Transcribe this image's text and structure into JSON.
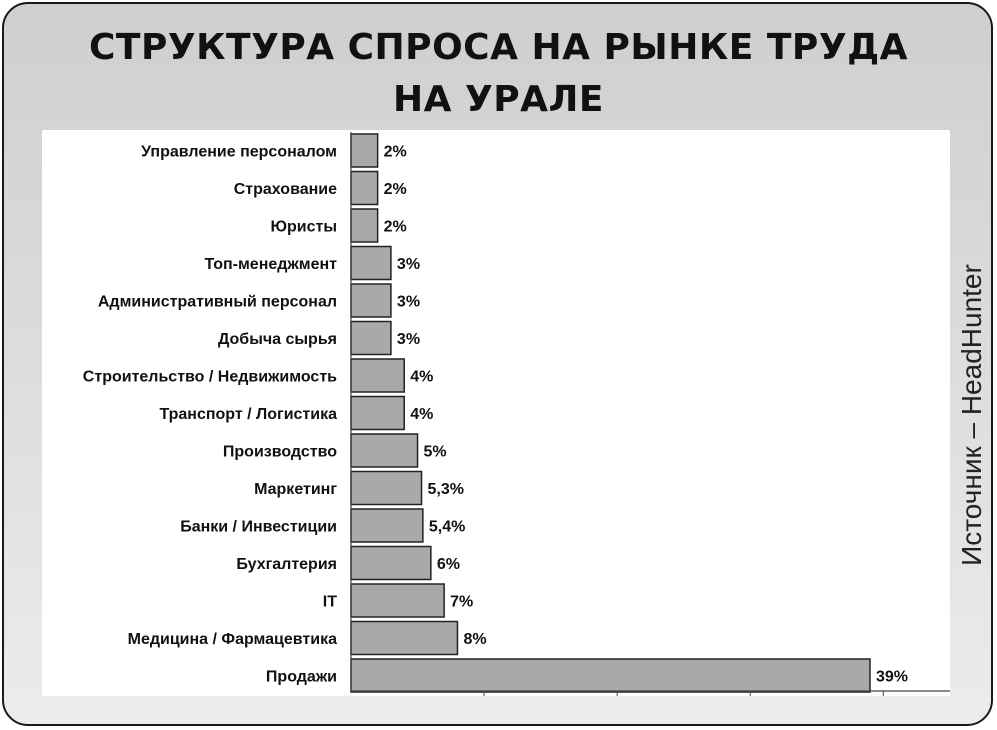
{
  "title_line1": "СТРУКТУРА СПРОСА НА РЫНКЕ ТРУДА",
  "title_line2": "НА УРАЛЕ",
  "source": "Источник – HeadHunter",
  "colors": {
    "bar_fill": "#a9a9a9",
    "bar_stroke": "#222222",
    "axis": "#444444"
  },
  "chart_data": {
    "type": "bar",
    "orientation": "horizontal",
    "title": "СТРУКТУРА СПРОСА НА РЫНКЕ ТРУДА НА УРАЛЕ",
    "categories": [
      "Управление персоналом",
      "Страхование",
      "Юристы",
      "Топ-менеджмент",
      "Административный персонал",
      "Добыча сырья",
      "Строительство / Недвижимость",
      "Транспорт / Логистика",
      "Производство",
      "Маркетинг",
      "Банки / Инвестиции",
      "Бухгалтерия",
      "IT",
      "Медицина / Фармацевтика",
      "Продажи"
    ],
    "values": [
      2,
      2,
      2,
      3,
      3,
      3,
      4,
      4,
      5,
      5.3,
      5.4,
      6,
      7,
      8,
      39
    ],
    "value_labels": [
      "2%",
      "2%",
      "2%",
      "3%",
      "3%",
      "3%",
      "4%",
      "4%",
      "5%",
      "5,3%",
      "5,4%",
      "6%",
      "7%",
      "8%",
      "39%"
    ],
    "xlim": [
      0,
      45
    ],
    "grid": false,
    "legend": "none"
  }
}
